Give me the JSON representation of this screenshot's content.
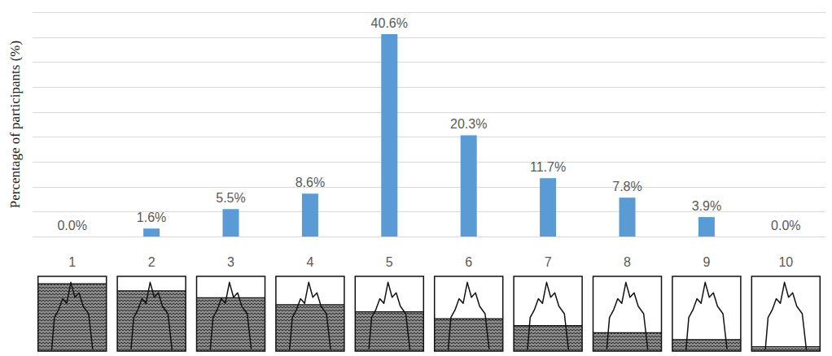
{
  "chart_data": {
    "type": "bar",
    "y_label": "Percentage of participants (%)",
    "categories": [
      "1",
      "2",
      "3",
      "4",
      "5",
      "6",
      "7",
      "8",
      "9",
      "10"
    ],
    "values": [
      0.0,
      1.6,
      5.5,
      8.6,
      40.6,
      20.3,
      11.7,
      7.8,
      3.9,
      0.0
    ],
    "value_labels": [
      "0.0%",
      "1.6%",
      "5.5%",
      "8.6%",
      "40.6%",
      "20.3%",
      "11.7%",
      "7.8%",
      "3.9%",
      "0.0%"
    ],
    "color": "#5b9bd5",
    "ylim": [
      0,
      45
    ],
    "yticks": [
      0,
      5,
      10,
      15,
      20,
      25,
      30,
      35,
      40,
      45
    ],
    "grid": true,
    "data_labels": true,
    "tick_labels": "x"
  }
}
